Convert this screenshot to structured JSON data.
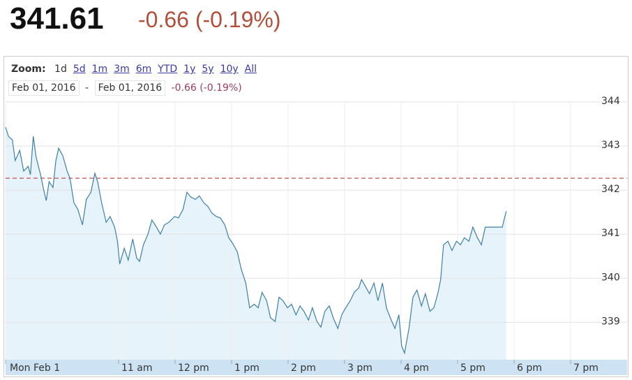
{
  "header": {
    "price": "341.61",
    "change": "-0.66 (-0.19%)"
  },
  "chart_data": {
    "type": "line",
    "zoom_label": "Zoom:",
    "zoom_options": [
      "1d",
      "5d",
      "1m",
      "3m",
      "6m",
      "YTD",
      "1y",
      "5y",
      "10y",
      "All"
    ],
    "date_from": "Feb 01, 2016",
    "date_separator": "-",
    "date_to": "Feb 01, 2016",
    "range_change": "-0.66 (-0.19%)",
    "color": "#3d7fa6",
    "fill_color": "#e6f3fb",
    "previous_close": 342.27,
    "previous_close_color": "#c0504d",
    "xlim": [
      9,
      20
    ],
    "ylim": [
      338.15,
      344
    ],
    "xticks": [
      {
        "value": 9,
        "label": "Mon Feb 1"
      },
      {
        "value": 11,
        "label": "11 am"
      },
      {
        "value": 12,
        "label": "12 pm"
      },
      {
        "value": 13,
        "label": "1 pm"
      },
      {
        "value": 14,
        "label": "2 pm"
      },
      {
        "value": 15,
        "label": "3 pm"
      },
      {
        "value": 16,
        "label": "4 pm"
      },
      {
        "value": 17,
        "label": "5 pm"
      },
      {
        "value": 18,
        "label": "6 pm"
      },
      {
        "value": 19,
        "label": "7 pm"
      }
    ],
    "yticks": [
      339,
      340,
      341,
      342,
      343,
      344
    ],
    "grid": true,
    "x": [
      9.0,
      9.05,
      9.12,
      9.17,
      9.25,
      9.32,
      9.4,
      9.44,
      9.49,
      9.54,
      9.62,
      9.67,
      9.72,
      9.77,
      9.84,
      9.89,
      9.94,
      10.01,
      10.09,
      10.14,
      10.21,
      10.28,
      10.36,
      10.43,
      10.51,
      10.58,
      10.63,
      10.7,
      10.78,
      10.85,
      10.93,
      10.98,
      11.02,
      11.1,
      11.17,
      11.25,
      11.32,
      11.37,
      11.44,
      11.52,
      11.59,
      11.67,
      11.74,
      11.81,
      11.89,
      11.99,
      12.06,
      12.14,
      12.21,
      12.28,
      12.36,
      12.43,
      12.51,
      12.58,
      12.65,
      12.73,
      12.8,
      12.88,
      12.95,
      13.02,
      13.1,
      13.17,
      13.25,
      13.32,
      13.4,
      13.47,
      13.54,
      13.62,
      13.69,
      13.77,
      13.84,
      13.91,
      13.99,
      14.06,
      14.14,
      14.21,
      14.28,
      14.36,
      14.43,
      14.51,
      14.58,
      14.65,
      14.73,
      14.8,
      14.88,
      14.95,
      15.02,
      15.1,
      15.17,
      15.25,
      15.3,
      15.37,
      15.44,
      15.52,
      15.59,
      15.67,
      15.74,
      15.81,
      15.89,
      15.96,
      16.01,
      16.06,
      16.14,
      16.21,
      16.28,
      16.36,
      16.43,
      16.51,
      16.58,
      16.65,
      16.7,
      16.75,
      16.83,
      16.9,
      16.98,
      17.05,
      17.12,
      17.2,
      17.27,
      17.35,
      17.42,
      17.49,
      17.79,
      17.86
    ],
    "values": [
      343.43,
      343.22,
      343.14,
      342.67,
      342.9,
      342.43,
      342.54,
      342.35,
      343.22,
      342.75,
      342.35,
      342.03,
      341.76,
      342.19,
      342.06,
      342.67,
      342.95,
      342.79,
      342.43,
      342.27,
      341.71,
      341.56,
      341.21,
      341.79,
      341.95,
      342.38,
      342.19,
      341.71,
      341.27,
      341.4,
      341.16,
      340.84,
      340.32,
      340.68,
      340.41,
      340.89,
      340.46,
      340.38,
      340.76,
      341.0,
      341.32,
      341.16,
      341.0,
      341.21,
      341.27,
      341.4,
      341.37,
      341.56,
      341.95,
      341.84,
      341.79,
      341.87,
      341.71,
      341.63,
      341.48,
      341.4,
      341.37,
      341.21,
      340.92,
      340.79,
      340.6,
      340.21,
      339.89,
      339.33,
      339.41,
      339.33,
      339.68,
      339.49,
      339.1,
      339.02,
      339.57,
      339.49,
      339.33,
      339.41,
      339.17,
      339.37,
      339.25,
      339.05,
      339.33,
      339.02,
      338.89,
      339.25,
      339.37,
      339.1,
      338.86,
      339.17,
      339.33,
      339.49,
      339.68,
      339.78,
      339.97,
      339.81,
      339.65,
      339.89,
      339.49,
      339.89,
      339.33,
      339.1,
      338.86,
      339.17,
      338.46,
      338.3,
      338.86,
      339.57,
      339.73,
      339.37,
      339.65,
      339.25,
      339.33,
      339.65,
      339.97,
      340.76,
      340.84,
      340.63,
      340.84,
      340.76,
      340.92,
      340.84,
      341.16,
      340.92,
      340.76,
      341.16,
      341.16,
      341.52
    ]
  }
}
